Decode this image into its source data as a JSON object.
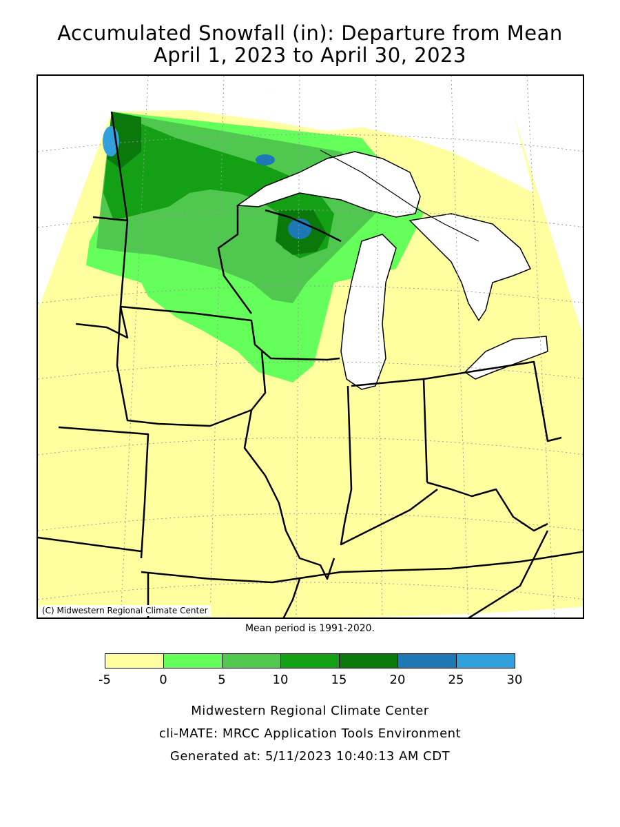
{
  "title": {
    "line1": "Accumulated Snowfall (in): Departure from Mean",
    "line2": "April 1, 2023 to April 30, 2023"
  },
  "map": {
    "credit": "(C) Midwestern Regional Climate Center",
    "background_color": "#ffffa0",
    "lake_color": "#ffffff"
  },
  "mean_note": "Mean period is 1991-2020.",
  "legend": {
    "ticks": [
      "-5",
      "0",
      "5",
      "10",
      "15",
      "20",
      "25",
      "30"
    ],
    "colors": [
      "#ffffa0",
      "#64ff5a",
      "#50c850",
      "#14a014",
      "#0a780a",
      "#1e78b4",
      "#32a0dc"
    ]
  },
  "footer": {
    "line1": "Midwestern Regional Climate Center",
    "line2": "cli-MATE: MRCC Application Tools Environment",
    "line3": "Generated at: 5/11/2023 10:40:13 AM CDT"
  }
}
